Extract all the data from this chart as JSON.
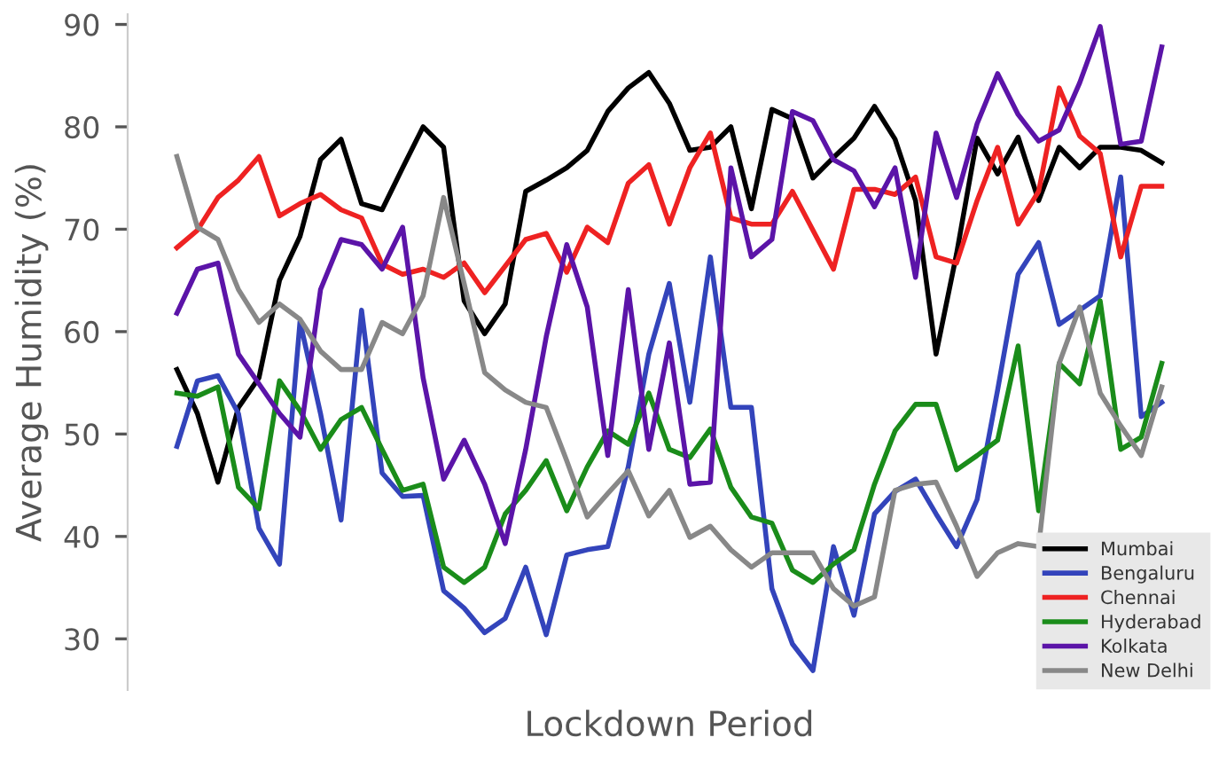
{
  "chart_data": {
    "type": "line",
    "xlabel": "Lockdown Period",
    "ylabel": "Average Humidity (%)",
    "categories": [
      null,
      null,
      null,
      null,
      null,
      null,
      null,
      null,
      null,
      null,
      null,
      null,
      null,
      null,
      null,
      null,
      null,
      null,
      null,
      null,
      null,
      null,
      null,
      null,
      null,
      null,
      null,
      null,
      null,
      null,
      null,
      null,
      null,
      null,
      null,
      null,
      null,
      null,
      null,
      null,
      null,
      null,
      null,
      null,
      null,
      null,
      null,
      null,
      null
    ],
    "ylim": [
      25,
      91
    ],
    "yticks": [
      30,
      40,
      50,
      60,
      70,
      80,
      90
    ],
    "grid": false,
    "legend": "bottom right",
    "tick_labels": "y",
    "series": [
      {
        "name": "Mumbai",
        "color": "#000000",
        "values": [
          56.3,
          52,
          45.3,
          52.6,
          55.5,
          65,
          69.3,
          76.8,
          78.8,
          72.5,
          71.9,
          76,
          80,
          78,
          63,
          59.8,
          62.7,
          73.7,
          74.8,
          76,
          77.7,
          81.5,
          83.8,
          85.3,
          82.3,
          77.7,
          78,
          80,
          72,
          81.7,
          80.8,
          75,
          77,
          78.9,
          82,
          78.8,
          72.8,
          57.8,
          67.6,
          78.9,
          75.4,
          79,
          72.8,
          78,
          76,
          78,
          78,
          77.7,
          76.5
        ]
      },
      {
        "name": "Bengaluru",
        "color": "#3344bb",
        "values": [
          48.8,
          55.2,
          55.7,
          52,
          40.8,
          37.3,
          61,
          52,
          41.6,
          62.1,
          46.2,
          43.9,
          44,
          34.7,
          33,
          30.6,
          32,
          37,
          30.4,
          38.2,
          38.7,
          39,
          46.8,
          57.8,
          64.7,
          53.1,
          67.3,
          52.6,
          52.6,
          34.9,
          29.5,
          26.9,
          39,
          32.3,
          42.2,
          44.4,
          45.6,
          42.2,
          39,
          43.6,
          54.3,
          65.6,
          68.7,
          60.7,
          62.1,
          63.5,
          75.1,
          51.7,
          53.1
        ]
      },
      {
        "name": "Chennai",
        "color": "#ee2222",
        "values": [
          68.2,
          69.9,
          73.1,
          74.8,
          77.1,
          71.3,
          72.5,
          73.4,
          71.9,
          71.1,
          66.6,
          65.6,
          66.1,
          65.3,
          66.7,
          63.8,
          66.4,
          69,
          69.6,
          65.8,
          70.2,
          68.7,
          74.5,
          76.3,
          70.5,
          76,
          79.4,
          71.1,
          70.5,
          70.5,
          73.7,
          69.9,
          66.1,
          73.9,
          73.9,
          73.4,
          75.1,
          67.3,
          66.7,
          72.8,
          78,
          70.5,
          73.7,
          83.8,
          79.1,
          77.4,
          67.3,
          74.2,
          74.2
        ]
      },
      {
        "name": "Hyderabad",
        "color": "#1a8c1a",
        "values": [
          54,
          53.7,
          54.6,
          44.8,
          42.7,
          55.2,
          52.3,
          48.5,
          51.4,
          52.6,
          48.5,
          44.5,
          45.1,
          37,
          35.5,
          37,
          42.2,
          44.5,
          47.4,
          42.5,
          46.8,
          50.3,
          49,
          54,
          48.5,
          47.7,
          50.5,
          44.8,
          41.9,
          41.3,
          36.7,
          35.5,
          37.3,
          38.7,
          45.1,
          50.3,
          52.9,
          52.9,
          46.5,
          47.9,
          49.4,
          58.6,
          42.5,
          56.9,
          54.9,
          63,
          48.5,
          49.7,
          56.9
        ]
      },
      {
        "name": "Kolkata",
        "color": "#5b14a8",
        "values": [
          61.8,
          66.1,
          66.7,
          57.8,
          54.9,
          52,
          49.7,
          64.1,
          69,
          68.5,
          66.1,
          70.2,
          55.5,
          45.6,
          49.4,
          45.1,
          39.3,
          48.5,
          59.5,
          68.5,
          62.4,
          47.9,
          64.1,
          48.5,
          58.9,
          45.1,
          45.3,
          76,
          67.3,
          69,
          81.5,
          80.6,
          76.8,
          75.7,
          72.2,
          76,
          65.3,
          79.4,
          73.1,
          80.3,
          85.2,
          81.2,
          78.6,
          79.7,
          84.3,
          89.8,
          78.3,
          78.6,
          87.8
        ]
      },
      {
        "name": "New Delhi",
        "color": "#888888",
        "values": [
          77.1,
          70.2,
          69,
          64.1,
          60.9,
          62.7,
          61.2,
          58.1,
          56.3,
          56.3,
          60.9,
          59.8,
          63.5,
          73.1,
          64.7,
          56,
          54.3,
          53.1,
          52.6,
          47.4,
          41.9,
          44.2,
          46.4,
          42,
          44.5,
          39.9,
          41,
          38.7,
          37,
          38.4,
          38.4,
          38.4,
          34.9,
          33.2,
          34.1,
          44.5,
          45.1,
          45.3,
          41,
          36.1,
          38.4,
          39.3,
          39,
          56.9,
          62.4,
          54,
          50.8,
          47.9,
          54.6
        ]
      }
    ]
  }
}
